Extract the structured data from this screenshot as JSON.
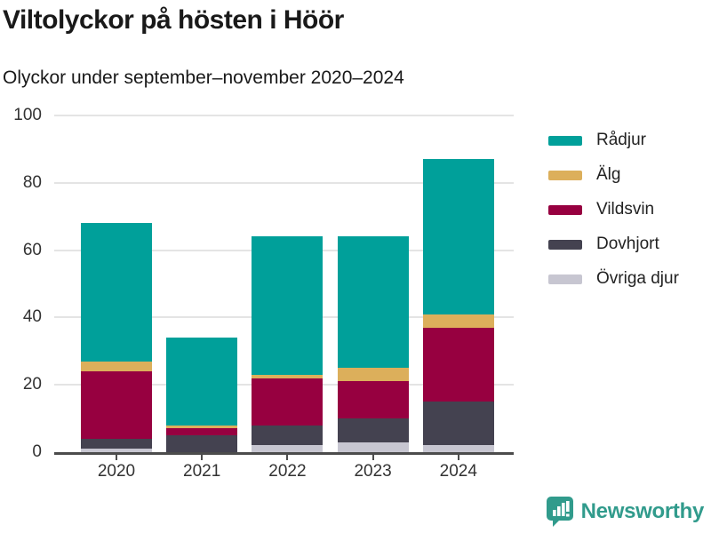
{
  "title": "Viltolyckor på hösten i Höör",
  "subtitle": "Olyckor under september–november 2020–2024",
  "colors": {
    "background": "#ffffff",
    "gridline": "#e4e4e4",
    "axis": "#4c4c4c",
    "text": "#191919",
    "tick_text": "#333333",
    "brand_teal": "#319b8c"
  },
  "chart_data": {
    "type": "bar",
    "stacked": true,
    "title": "Viltolyckor på hösten i Höör",
    "subtitle": "Olyckor under september–november 2020–2024",
    "categories": [
      "2020",
      "2021",
      "2022",
      "2023",
      "2024"
    ],
    "series": [
      {
        "name": "Rådjur",
        "color": "#00a09a",
        "values": [
          41,
          26,
          41,
          39,
          46
        ]
      },
      {
        "name": "Älg",
        "color": "#dcaf5b",
        "values": [
          3,
          1,
          1,
          4,
          4
        ]
      },
      {
        "name": "Vildsvin",
        "color": "#970040",
        "values": [
          20,
          2,
          14,
          11,
          22
        ]
      },
      {
        "name": "Dovhjort",
        "color": "#444250",
        "values": [
          3,
          5,
          6,
          7,
          13
        ]
      },
      {
        "name": "Övriga djur",
        "color": "#c7c6d1",
        "values": [
          1,
          0,
          2,
          3,
          2
        ]
      }
    ],
    "totals": [
      68,
      34,
      64,
      64,
      87
    ],
    "stack_order_bottom_to_top": [
      "Övriga djur",
      "Dovhjort",
      "Vildsvin",
      "Älg",
      "Rådjur"
    ],
    "xlabel": "",
    "ylabel": "",
    "ylim": [
      0,
      100
    ],
    "yticks": [
      0,
      20,
      40,
      60,
      80,
      100
    ],
    "grid": true,
    "legend_position": "right"
  },
  "footer": {
    "brand": "Newsworthy"
  }
}
